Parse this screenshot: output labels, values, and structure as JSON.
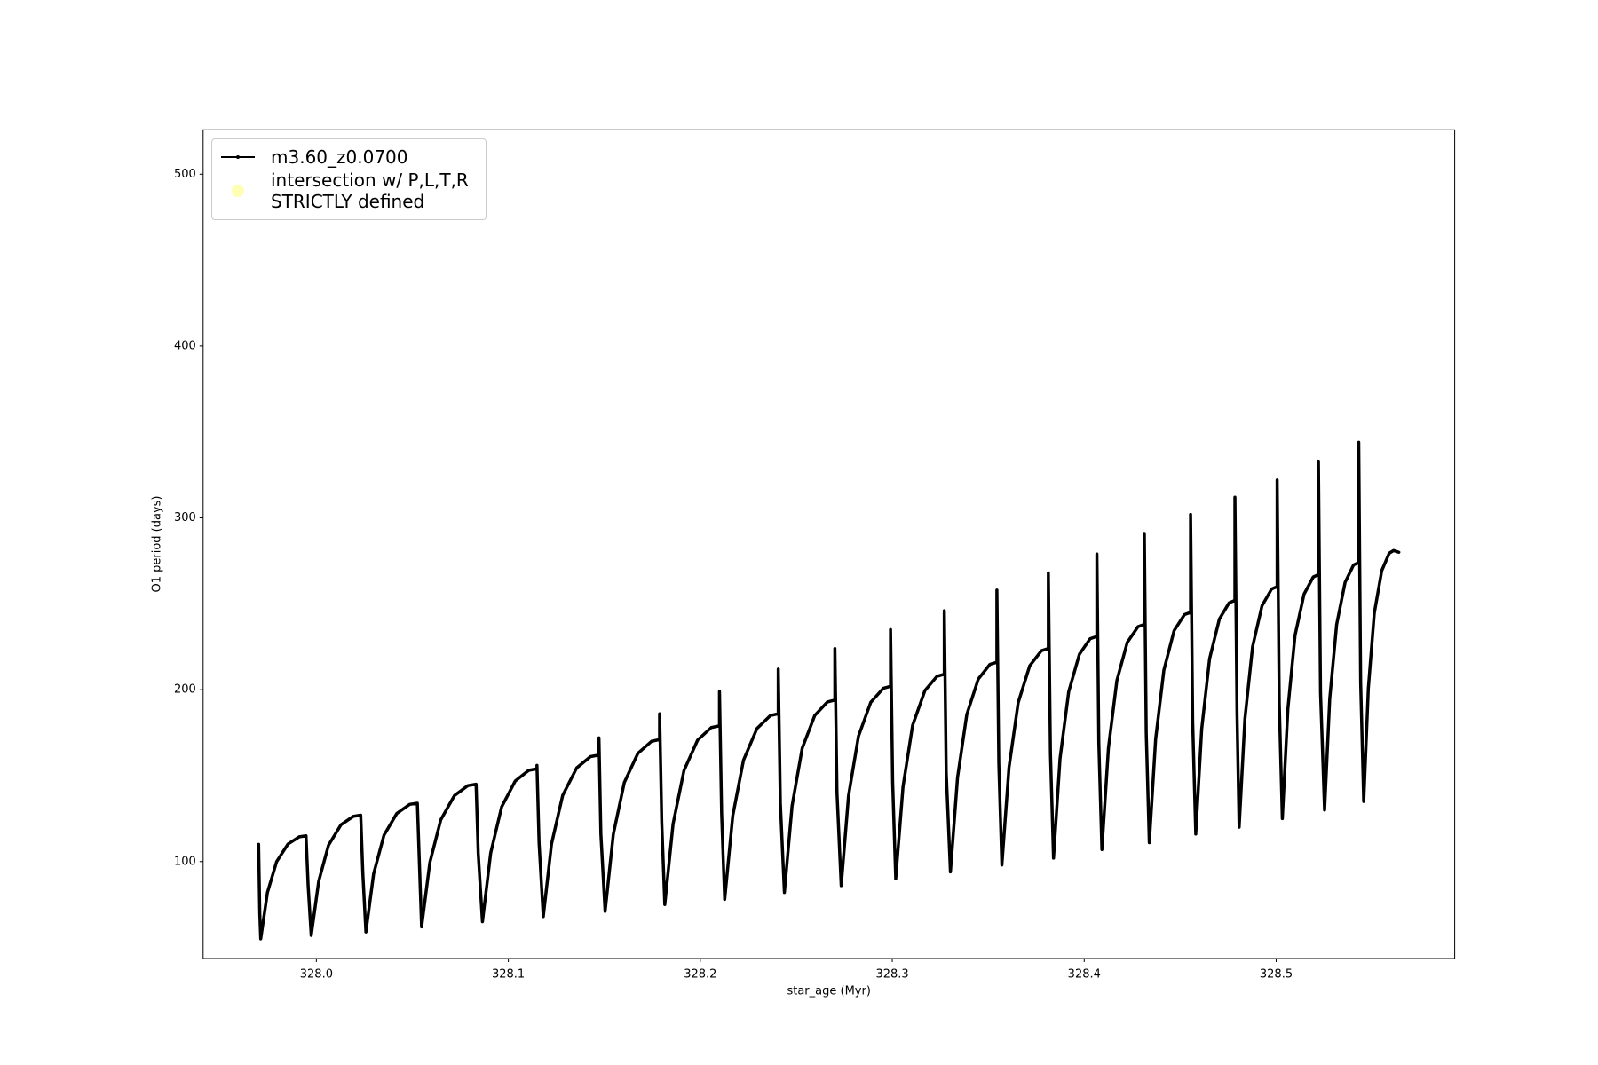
{
  "chart_data": {
    "type": "line",
    "xlabel": "star_age (Myr)",
    "ylabel": "O1 period (days)",
    "xlim": [
      327.941,
      328.593
    ],
    "ylim": [
      43.6,
      525.8
    ],
    "xticks": [
      {
        "value": 328.0,
        "label": "328.0"
      },
      328.1,
      328.2,
      328.3,
      328.4,
      328.5
    ],
    "yticks": [
      100,
      200,
      300,
      400,
      500
    ],
    "grid": false,
    "legend": "upper left",
    "series": [
      {
        "name": "m3.60_z0.0700",
        "color": "#000000",
        "type": "line",
        "x": [
          327.9699,
          327.9699,
          327.9705,
          327.971,
          327.9745,
          327.9793,
          327.9852,
          327.9911,
          327.9946,
          327.9957,
          327.9973,
          328.0012,
          328.0063,
          328.0128,
          328.0192,
          328.0231,
          328.0242,
          328.0258,
          328.0298,
          328.0352,
          328.0419,
          328.0486,
          328.0526,
          328.0537,
          328.0548,
          328.0591,
          328.0648,
          328.0719,
          328.0789,
          328.0832,
          328.0843,
          328.0865,
          328.0908,
          328.0965,
          328.1036,
          328.1106,
          328.1149,
          328.1149,
          328.116,
          328.1182,
          328.1225,
          328.1283,
          328.1356,
          328.1428,
          328.1472,
          328.1472,
          328.1482,
          328.1504,
          328.1547,
          328.1604,
          328.1675,
          328.1746,
          328.1788,
          328.1788,
          328.1799,
          328.1815,
          328.1858,
          328.1915,
          328.1986,
          328.2057,
          328.21,
          328.21,
          328.2111,
          328.2127,
          328.2169,
          328.2225,
          328.2295,
          328.2365,
          328.2406,
          328.2406,
          328.2417,
          328.2438,
          328.2478,
          328.2531,
          328.2596,
          328.2662,
          328.2701,
          328.2701,
          328.2712,
          328.2734,
          328.2772,
          328.2824,
          328.2888,
          328.2953,
          328.2991,
          328.2991,
          328.3002,
          328.3018,
          328.3056,
          328.3106,
          328.317,
          328.3233,
          328.3271,
          328.3271,
          328.3281,
          328.3303,
          328.334,
          328.3388,
          328.3448,
          328.3509,
          328.3545,
          328.3545,
          328.3555,
          328.3571,
          328.3608,
          328.3656,
          328.3716,
          328.3777,
          328.3813,
          328.3813,
          328.3824,
          328.384,
          328.3874,
          328.3919,
          328.3975,
          328.4031,
          328.4066,
          328.4066,
          328.4076,
          328.4092,
          328.4126,
          328.417,
          328.4224,
          328.428,
          328.4313,
          328.4313,
          328.4323,
          328.4339,
          328.4372,
          328.4415,
          328.4468,
          328.4522,
          328.4554,
          328.4554,
          328.4565,
          328.4581,
          328.4612,
          328.4653,
          328.4704,
          328.4755,
          328.4785,
          328.4785,
          328.4796,
          328.4807,
          328.4837,
          328.4877,
          328.4926,
          328.4976,
          328.5005,
          328.5005,
          328.5016,
          328.5032,
          328.5061,
          328.5098,
          328.5145,
          328.5193,
          328.522,
          328.522,
          328.5231,
          328.5252,
          328.5279,
          328.5315,
          328.5359,
          328.5403,
          328.543,
          328.543,
          328.544,
          328.5456,
          328.548,
          328.5511,
          328.555,
          328.5589,
          328.5612,
          328.5639
        ],
        "values": [
          103,
          110,
          70,
          55,
          82,
          100,
          110.2,
          114.4,
          115,
          86,
          57,
          88.5,
          109.5,
          121.4,
          126.3,
          127,
          93,
          59,
          92.8,
          115.3,
          128,
          133.3,
          134,
          98,
          62,
          99.4,
          124.3,
          138.4,
          144.2,
          145,
          105,
          65,
          105,
          131.8,
          146.9,
          153.1,
          154,
          156,
          111,
          68,
          110.3,
          138.5,
          154.5,
          161.1,
          162,
          172,
          116,
          71,
          116,
          146,
          163,
          170,
          171,
          186,
          123,
          75,
          121.8,
          153,
          170.7,
          178,
          179,
          199,
          128,
          78,
          126.6,
          159,
          177.4,
          185,
          186,
          212,
          134,
          82,
          132.4,
          166,
          185,
          192.9,
          194,
          224,
          140,
          86,
          138.2,
          173,
          192.7,
          200.8,
          202,
          235,
          146,
          90,
          143.6,
          179.3,
          199.5,
          207.8,
          209,
          246,
          152,
          94,
          148.9,
          185.5,
          206.2,
          214.8,
          216,
          258,
          157,
          98,
          154.7,
          192.5,
          213.9,
          222.7,
          224,
          268,
          163,
          102,
          160,
          198.8,
          220.7,
          229.7,
          231,
          279,
          169,
          107,
          166,
          205.3,
          227.5,
          236.7,
          238,
          291,
          175,
          111,
          171.3,
          211.5,
          234.3,
          243.7,
          245,
          302,
          181,
          116,
          177.2,
          218,
          241.1,
          250.6,
          252,
          312,
          186,
          120,
          183,
          225,
          248.8,
          258.6,
          260,
          322,
          192,
          125,
          188.9,
          231.5,
          255.6,
          265.6,
          267,
          333,
          198,
          130,
          194.8,
          238,
          262.5,
          272.6,
          274,
          344,
          204,
          135,
          200.7,
          244.5,
          269.3,
          279.5,
          281,
          280
        ]
      },
      {
        "name": "intersection w/ P,L,T,R\nSTRICTLY defined",
        "color": "#ffffb3",
        "type": "scatter",
        "x": [],
        "values": []
      }
    ]
  }
}
